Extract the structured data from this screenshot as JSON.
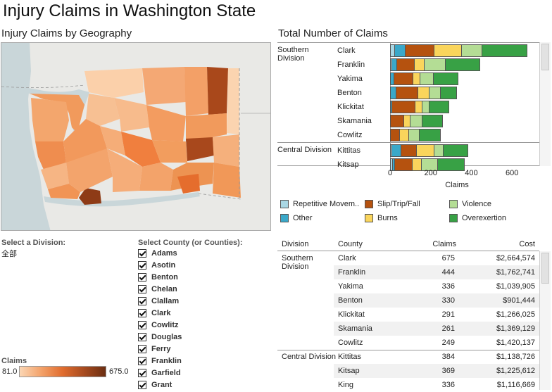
{
  "title": "Injury Claims in Washington State",
  "map": {
    "title": "Injury Claims by Geography"
  },
  "bar_chart_title": "Total Number of Claims",
  "division_filter": {
    "label": "Select a Division:",
    "value": "全部"
  },
  "county_filter": {
    "label": "Select County (or Counties):",
    "items": [
      "Adams",
      "Asotin",
      "Benton",
      "Chelan",
      "Clallam",
      "Clark",
      "Cowlitz",
      "Douglas",
      "Ferry",
      "Franklin",
      "Garfield",
      "Grant"
    ]
  },
  "claims_legend": {
    "label": "Claims",
    "min": "81.0",
    "max": "675.0"
  },
  "colors": {
    "repetitive": "#a9d7e4",
    "other": "#3aa8c9",
    "slip": "#b5520f",
    "burns": "#fad55c",
    "violence": "#b4dd95",
    "overexertion": "#38a145"
  },
  "categories_legend": [
    {
      "name": "Repetitive Movem..",
      "color_key": "repetitive"
    },
    {
      "name": "Slip/Trip/Fall",
      "color_key": "slip"
    },
    {
      "name": "Violence",
      "color_key": "violence"
    },
    {
      "name": "Other",
      "color_key": "other"
    },
    {
      "name": "Burns",
      "color_key": "burns"
    },
    {
      "name": "Overexertion",
      "color_key": "overexertion"
    }
  ],
  "chart_data": {
    "type": "bar",
    "orientation": "horizontal",
    "stacked": true,
    "xlabel": "Claims",
    "xlim": [
      0,
      700
    ],
    "x_ticks": [
      "0",
      "200",
      "400",
      "600"
    ],
    "groups": [
      {
        "division": "Southern Division",
        "counties": [
          "Clark",
          "Franklin",
          "Yakima",
          "Benton",
          "Klickitat",
          "Skamania",
          "Cowlitz"
        ]
      },
      {
        "division": "Central Division",
        "counties": [
          "Kittitas",
          "Kitsap"
        ]
      }
    ],
    "categories": [
      "Clark",
      "Franklin",
      "Yakima",
      "Benton",
      "Klickitat",
      "Skamania",
      "Cowlitz",
      "Kittitas",
      "Kitsap"
    ],
    "series": [
      {
        "name": "Repetitive Movem..",
        "color_key": "repetitive",
        "values": [
          25,
          10,
          5,
          5,
          5,
          0,
          0,
          10,
          15
        ]
      },
      {
        "name": "Other",
        "color_key": "other",
        "values": [
          50,
          25,
          15,
          25,
          5,
          5,
          5,
          45,
          10
        ]
      },
      {
        "name": "Slip/Trip/Fall",
        "color_key": "slip",
        "values": [
          145,
          85,
          95,
          110,
          115,
          65,
          45,
          75,
          85
        ]
      },
      {
        "name": "Burns",
        "color_key": "burns",
        "values": [
          135,
          50,
          35,
          55,
          35,
          30,
          45,
          90,
          45
        ]
      },
      {
        "name": "Violence",
        "color_key": "violence",
        "values": [
          100,
          105,
          65,
          55,
          35,
          60,
          50,
          45,
          80
        ]
      },
      {
        "name": "Overexertion",
        "color_key": "overexertion",
        "values": [
          220,
          169,
          121,
          80,
          96,
          101,
          104,
          119,
          134
        ]
      }
    ]
  },
  "table": {
    "headers": {
      "division": "Division",
      "county": "County",
      "claims": "Claims",
      "cost": "Cost"
    },
    "divisions": [
      {
        "name": "Southern Division",
        "rows": [
          {
            "county": "Clark",
            "claims": "675",
            "cost": "$2,664,574"
          },
          {
            "county": "Franklin",
            "claims": "444",
            "cost": "$1,762,741"
          },
          {
            "county": "Yakima",
            "claims": "336",
            "cost": "$1,039,905"
          },
          {
            "county": "Benton",
            "claims": "330",
            "cost": "$901,444"
          },
          {
            "county": "Klickitat",
            "claims": "291",
            "cost": "$1,266,025"
          },
          {
            "county": "Skamania",
            "claims": "261",
            "cost": "$1,369,129"
          },
          {
            "county": "Cowlitz",
            "claims": "249",
            "cost": "$1,420,137"
          }
        ]
      },
      {
        "name": "Central Division",
        "rows": [
          {
            "county": "Kittitas",
            "claims": "384",
            "cost": "$1,138,726"
          },
          {
            "county": "Kitsap",
            "claims": "369",
            "cost": "$1,225,612"
          },
          {
            "county": "King",
            "claims": "336",
            "cost": "$1,116,669"
          }
        ]
      }
    ]
  }
}
